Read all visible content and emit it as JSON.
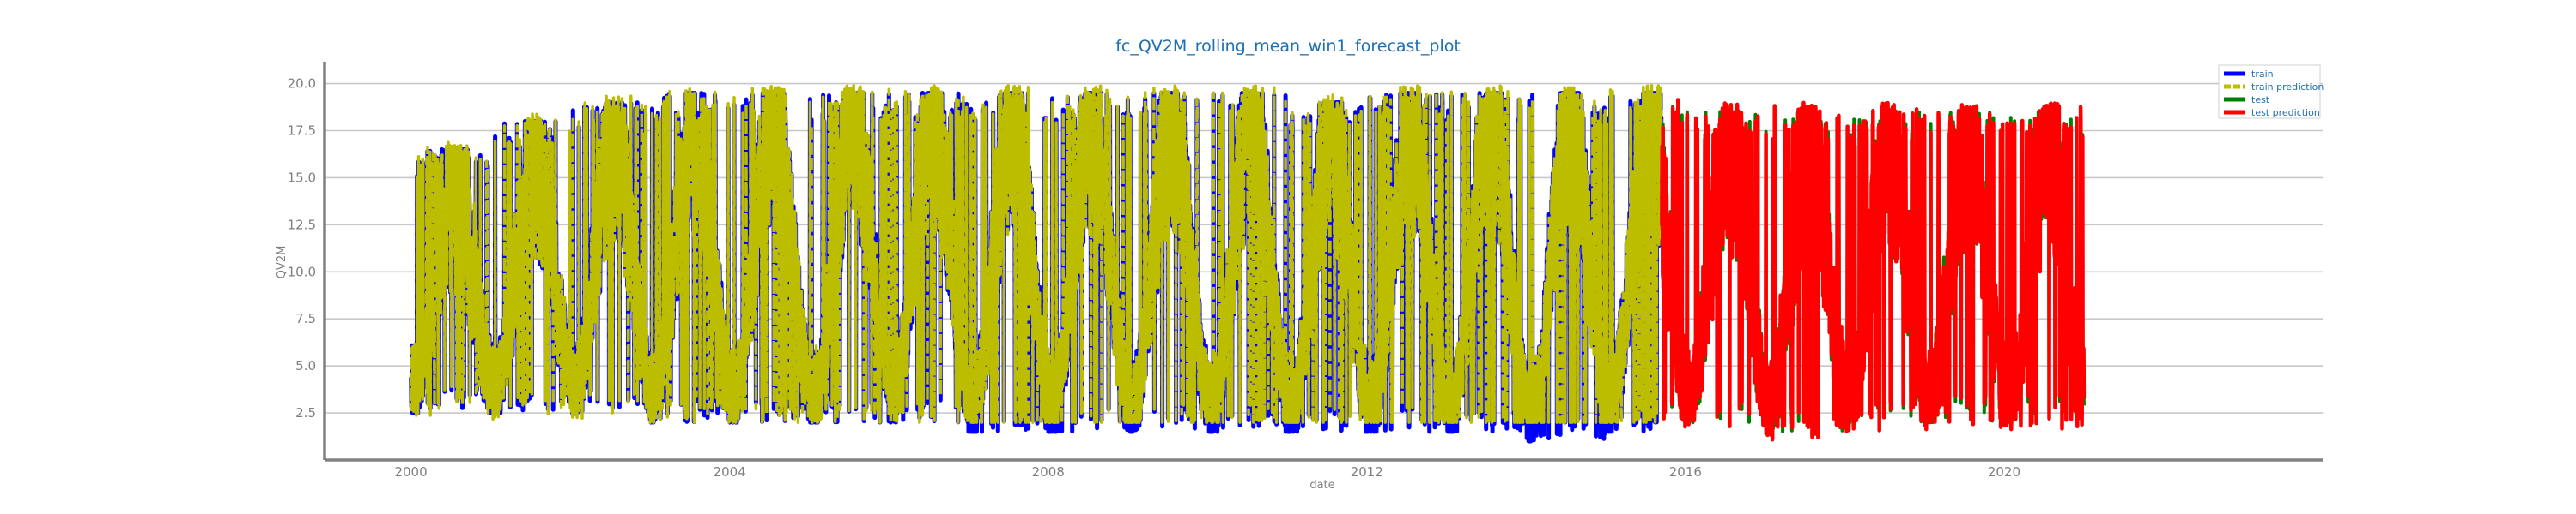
{
  "chart_data": {
    "type": "line",
    "title": "fc_QV2M_rolling_mean_win1_forecast_plot",
    "xlabel": "date",
    "ylabel": "QV2M",
    "x_ticks": [
      "2000",
      "2004",
      "2008",
      "2012",
      "2016",
      "2020"
    ],
    "y_ticks": [
      "2.5",
      "5.0",
      "7.5",
      "10.0",
      "12.5",
      "15.0",
      "17.5",
      "20.0"
    ],
    "xlim": [
      "1998-12-01",
      "2024-01-01"
    ],
    "ylim": [
      0.0,
      20.8
    ],
    "grid": "horizontal",
    "legend_position": "top-right",
    "colors": {
      "train": "#0000ff",
      "train_prediction": "#bdbd00",
      "test": "#008000",
      "test_prediction": "#ff0000",
      "title": "#1f6fae",
      "axis": "#7f7f7f",
      "grid": "#c8c8c8"
    },
    "series": [
      {
        "name": "train",
        "x_range": [
          "2000-01-01",
          "2015-09-15"
        ],
        "seasonal_range": [
          [
            2.5,
            16.5
          ],
          [
            2.5,
            18.0
          ],
          [
            2.5,
            19.0
          ],
          [
            2.0,
            19.5
          ],
          [
            2.0,
            19.5
          ],
          [
            2.0,
            19.5
          ],
          [
            2.0,
            19.5
          ],
          [
            1.5,
            19.5
          ],
          [
            1.5,
            19.5
          ],
          [
            1.5,
            19.5
          ],
          [
            1.5,
            19.5
          ],
          [
            1.5,
            19.0
          ],
          [
            1.5,
            19.5
          ],
          [
            1.5,
            19.5
          ],
          [
            1.0,
            19.5
          ],
          [
            1.5,
            19.5
          ]
        ]
      },
      {
        "name": "train prediction",
        "x_range": [
          "2000-01-01",
          "2015-09-15"
        ],
        "seasonal_range": [
          [
            2.5,
            16.5
          ],
          [
            2.5,
            18.0
          ],
          [
            2.5,
            19.0
          ],
          [
            2.0,
            19.5
          ],
          [
            2.0,
            19.5
          ],
          [
            2.0,
            19.5
          ],
          [
            2.0,
            19.5
          ],
          [
            1.5,
            19.5
          ],
          [
            1.5,
            19.5
          ],
          [
            1.5,
            19.5
          ],
          [
            1.5,
            19.5
          ],
          [
            1.5,
            19.0
          ],
          [
            1.5,
            19.5
          ],
          [
            1.5,
            19.5
          ],
          [
            1.0,
            19.5
          ],
          [
            1.5,
            19.5
          ]
        ]
      },
      {
        "name": "test",
        "x_range": [
          "2015-09-15",
          "2021-01-01"
        ],
        "seasonal_range": [
          [
            2.0,
            19.0
          ],
          [
            2.0,
            18.5
          ],
          [
            1.5,
            18.5
          ],
          [
            2.0,
            18.5
          ],
          [
            2.0,
            18.5
          ],
          [
            2.0,
            18.5
          ]
        ]
      },
      {
        "name": "test prediction",
        "x_range": [
          "2015-09-15",
          "2021-01-01"
        ],
        "seasonal_range": [
          [
            2.0,
            19.0
          ],
          [
            2.0,
            18.5
          ],
          [
            1.5,
            18.5
          ],
          [
            2.0,
            18.5
          ],
          [
            2.0,
            18.5
          ],
          [
            2.0,
            18.5
          ]
        ]
      }
    ]
  }
}
